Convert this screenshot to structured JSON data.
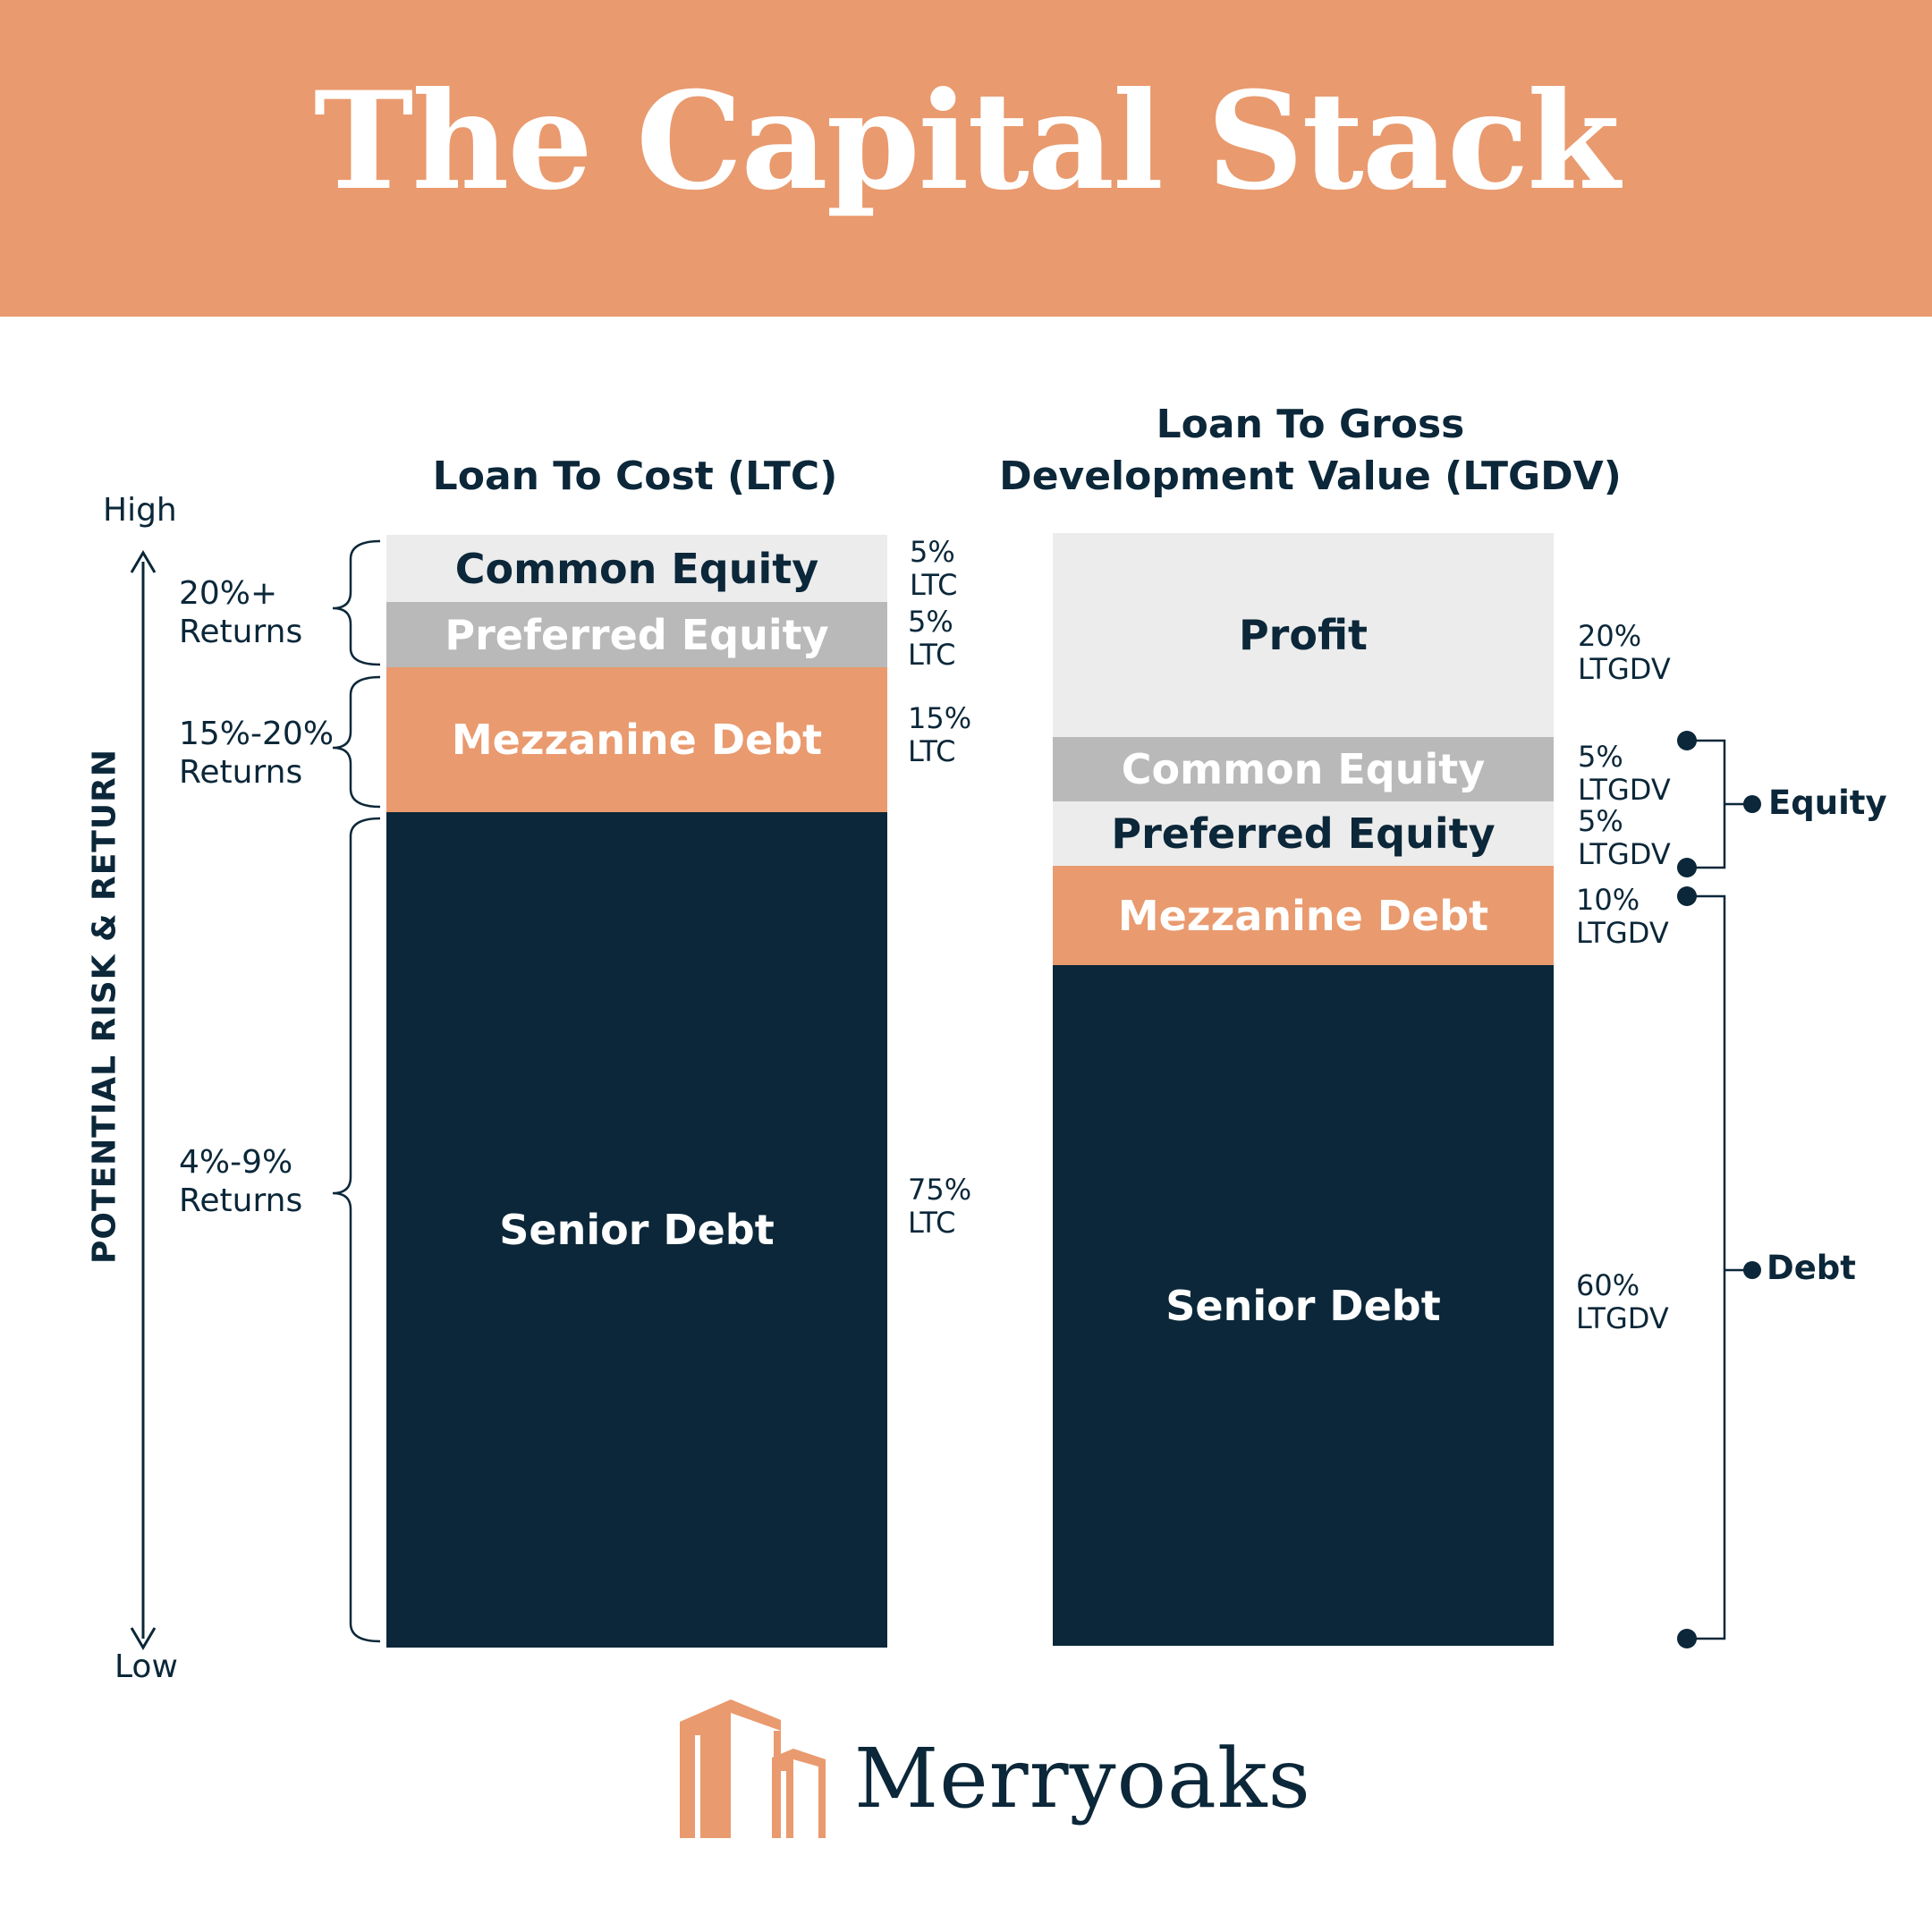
{
  "title": "The Capital Stack",
  "colors": {
    "navy": "#0b2739",
    "orange": "#e99a6e",
    "light_gray": "#ececec",
    "mid_gray": "#b9b9b9"
  },
  "axis": {
    "high": "High",
    "low": "Low",
    "label": "POTENTIAL RISK & RETURN"
  },
  "returns": [
    {
      "line1": "20%+",
      "line2": "Returns"
    },
    {
      "line1": "15%-20%",
      "line2": "Returns"
    },
    {
      "line1": "4%-9%",
      "line2": "Returns"
    }
  ],
  "ltc": {
    "title_line1": "Loan To Cost (LTC)",
    "segments": [
      {
        "label": "Common Equity",
        "pct": "5%",
        "unit": "LTC"
      },
      {
        "label": "Preferred Equity",
        "pct": "5%",
        "unit": "LTC"
      },
      {
        "label": "Mezzanine Debt",
        "pct": "15%",
        "unit": "LTC"
      },
      {
        "label": "Senior Debt",
        "pct": "75%",
        "unit": "LTC"
      }
    ]
  },
  "ltgdv": {
    "title_line1": "Loan To Gross",
    "title_line2": "Development Value (LTGDV)",
    "segments": [
      {
        "label": "Profit",
        "pct": "20%",
        "unit": "LTGDV"
      },
      {
        "label": "Common Equity",
        "pct": "5%",
        "unit": "LTGDV"
      },
      {
        "label": "Preferred Equity",
        "pct": "5%",
        "unit": "LTGDV"
      },
      {
        "label": "Mezzanine Debt",
        "pct": "10%",
        "unit": "LTGDV"
      },
      {
        "label": "Senior Debt",
        "pct": "60%",
        "unit": "LTGDV"
      }
    ]
  },
  "groups": {
    "equity": "Equity",
    "debt": "Debt"
  },
  "brand": {
    "name": "Merryoaks",
    "icon": "buildings-logo-icon"
  }
}
